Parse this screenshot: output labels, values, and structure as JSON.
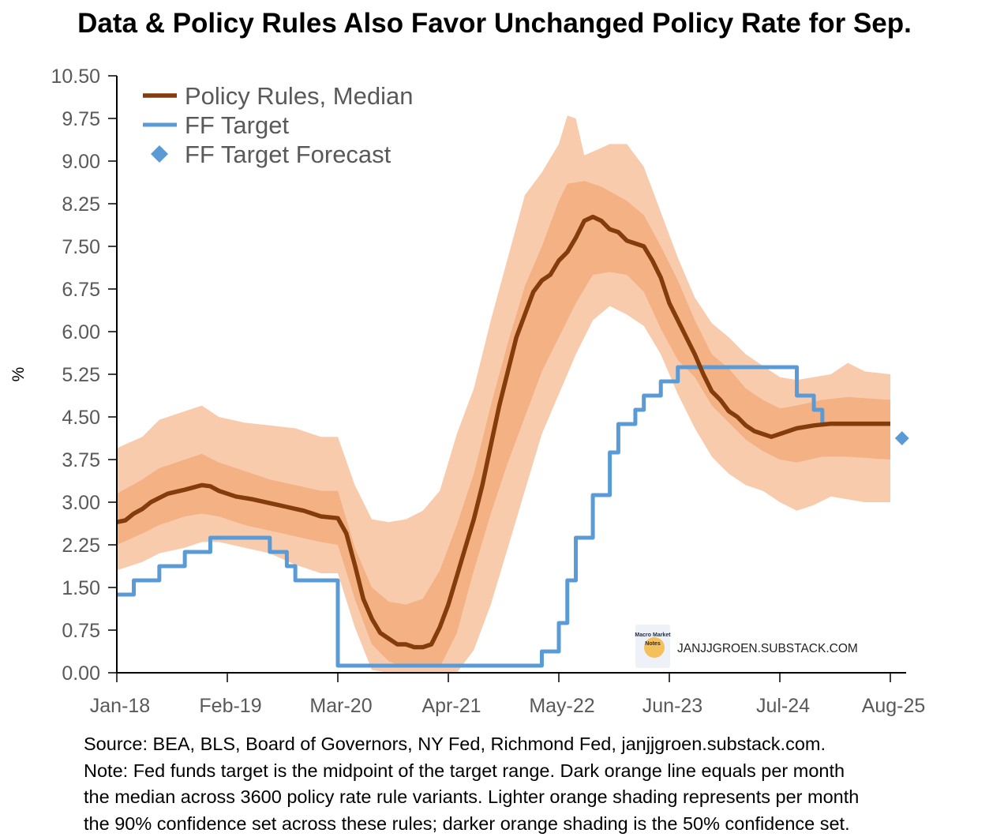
{
  "chart_data": {
    "type": "line",
    "title": "Data & Policy Rules Also Favor Unchanged Policy Rate for Sep.",
    "ylabel": "%",
    "xlabel": "",
    "ylim": [
      0,
      10.5
    ],
    "yticks": [
      "0.00",
      "0.75",
      "1.50",
      "2.25",
      "3.00",
      "3.75",
      "4.50",
      "5.25",
      "6.00",
      "6.75",
      "7.50",
      "8.25",
      "9.00",
      "9.75",
      "10.50"
    ],
    "xticks": [
      {
        "label": "Jan-18",
        "month": 0
      },
      {
        "label": "Feb-19",
        "month": 13
      },
      {
        "label": "Mar-20",
        "month": 26
      },
      {
        "label": "Apr-21",
        "month": 39
      },
      {
        "label": "May-22",
        "month": 52
      },
      {
        "label": "Jun-23",
        "month": 65
      },
      {
        "label": "Jul-24",
        "month": 78
      },
      {
        "label": "Aug-25",
        "month": 91
      }
    ],
    "x_note": "month index from Jan-18 = 0, monthly series through Aug-25 = 91",
    "legend": {
      "placement": "top-left",
      "entries": [
        "Policy Rules, Median",
        "FF Target",
        "FF Target Forecast"
      ]
    },
    "colors": {
      "median": "#843c0c",
      "ff": "#5b9bd5",
      "band90": "#f8cbad",
      "band50": "#f4b183"
    },
    "series": {
      "median": [
        [
          0,
          2.65
        ],
        [
          1,
          2.68
        ],
        [
          2,
          2.8
        ],
        [
          3,
          2.88
        ],
        [
          4,
          3.0
        ],
        [
          6,
          3.15
        ],
        [
          8,
          3.22
        ],
        [
          10,
          3.3
        ],
        [
          11,
          3.28
        ],
        [
          12,
          3.2
        ],
        [
          14,
          3.1
        ],
        [
          16,
          3.05
        ],
        [
          19,
          2.95
        ],
        [
          22,
          2.85
        ],
        [
          24,
          2.75
        ],
        [
          26,
          2.72
        ],
        [
          27,
          2.45
        ],
        [
          28,
          1.9
        ],
        [
          29,
          1.3
        ],
        [
          30,
          0.95
        ],
        [
          31,
          0.7
        ],
        [
          32,
          0.6
        ],
        [
          33,
          0.5
        ],
        [
          34,
          0.5
        ],
        [
          35,
          0.45
        ],
        [
          36,
          0.45
        ],
        [
          37,
          0.5
        ],
        [
          38,
          0.8
        ],
        [
          39,
          1.2
        ],
        [
          40,
          1.7
        ],
        [
          41,
          2.2
        ],
        [
          42,
          2.7
        ],
        [
          43,
          3.3
        ],
        [
          44,
          4.0
        ],
        [
          45,
          4.7
        ],
        [
          46,
          5.3
        ],
        [
          47,
          5.9
        ],
        [
          48,
          6.3
        ],
        [
          49,
          6.7
        ],
        [
          50,
          6.9
        ],
        [
          51,
          7.0
        ],
        [
          52,
          7.25
        ],
        [
          53,
          7.4
        ],
        [
          54,
          7.65
        ],
        [
          55,
          7.95
        ],
        [
          56,
          8.02
        ],
        [
          57,
          7.95
        ],
        [
          58,
          7.8
        ],
        [
          59,
          7.75
        ],
        [
          60,
          7.6
        ],
        [
          61,
          7.55
        ],
        [
          62,
          7.5
        ],
        [
          63,
          7.25
        ],
        [
          64,
          6.95
        ],
        [
          65,
          6.5
        ],
        [
          66,
          6.2
        ],
        [
          67,
          5.9
        ],
        [
          68,
          5.6
        ],
        [
          69,
          5.25
        ],
        [
          70,
          4.95
        ],
        [
          71,
          4.8
        ],
        [
          72,
          4.6
        ],
        [
          73,
          4.5
        ],
        [
          74,
          4.35
        ],
        [
          75,
          4.25
        ],
        [
          76,
          4.2
        ],
        [
          77,
          4.15
        ],
        [
          78,
          4.2
        ],
        [
          79,
          4.25
        ],
        [
          80,
          4.3
        ],
        [
          82,
          4.35
        ],
        [
          84,
          4.38
        ],
        [
          86,
          4.38
        ],
        [
          91,
          4.38
        ]
      ],
      "band90_high": [
        [
          0,
          3.95
        ],
        [
          3,
          4.15
        ],
        [
          5,
          4.45
        ],
        [
          8,
          4.6
        ],
        [
          10,
          4.7
        ],
        [
          12,
          4.5
        ],
        [
          15,
          4.4
        ],
        [
          18,
          4.35
        ],
        [
          21,
          4.3
        ],
        [
          24,
          4.15
        ],
        [
          26,
          4.15
        ],
        [
          28,
          3.3
        ],
        [
          30,
          2.7
        ],
        [
          32,
          2.65
        ],
        [
          34,
          2.7
        ],
        [
          36,
          2.85
        ],
        [
          38,
          3.2
        ],
        [
          40,
          4.2
        ],
        [
          42,
          5.0
        ],
        [
          44,
          6.2
        ],
        [
          46,
          7.3
        ],
        [
          48,
          8.4
        ],
        [
          50,
          8.8
        ],
        [
          52,
          9.3
        ],
        [
          53,
          9.8
        ],
        [
          54,
          9.75
        ],
        [
          55,
          9.1
        ],
        [
          58,
          9.3
        ],
        [
          60,
          9.3
        ],
        [
          62,
          8.9
        ],
        [
          64,
          8.1
        ],
        [
          66,
          7.3
        ],
        [
          68,
          6.6
        ],
        [
          70,
          6.15
        ],
        [
          72,
          5.9
        ],
        [
          74,
          5.6
        ],
        [
          76,
          5.4
        ],
        [
          78,
          5.2
        ],
        [
          80,
          5.15
        ],
        [
          82,
          5.2
        ],
        [
          84,
          5.25
        ],
        [
          86,
          5.45
        ],
        [
          88,
          5.3
        ],
        [
          91,
          5.25
        ]
      ],
      "band50_high": [
        [
          0,
          3.15
        ],
        [
          3,
          3.4
        ],
        [
          5,
          3.6
        ],
        [
          8,
          3.75
        ],
        [
          10,
          3.85
        ],
        [
          12,
          3.7
        ],
        [
          15,
          3.55
        ],
        [
          18,
          3.4
        ],
        [
          21,
          3.3
        ],
        [
          24,
          3.2
        ],
        [
          26,
          3.2
        ],
        [
          28,
          2.2
        ],
        [
          30,
          1.5
        ],
        [
          32,
          1.25
        ],
        [
          34,
          1.2
        ],
        [
          36,
          1.3
        ],
        [
          38,
          1.8
        ],
        [
          40,
          2.6
        ],
        [
          42,
          3.5
        ],
        [
          44,
          4.7
        ],
        [
          46,
          5.8
        ],
        [
          48,
          6.8
        ],
        [
          50,
          7.5
        ],
        [
          52,
          8.3
        ],
        [
          53,
          8.6
        ],
        [
          55,
          8.65
        ],
        [
          57,
          8.55
        ],
        [
          60,
          8.3
        ],
        [
          62,
          8.05
        ],
        [
          64,
          7.5
        ],
        [
          66,
          6.9
        ],
        [
          68,
          6.2
        ],
        [
          70,
          5.6
        ],
        [
          72,
          5.35
        ],
        [
          74,
          5.0
        ],
        [
          76,
          4.8
        ],
        [
          78,
          4.65
        ],
        [
          80,
          4.7
        ],
        [
          83,
          4.8
        ],
        [
          86,
          4.85
        ],
        [
          91,
          4.8
        ]
      ],
      "band50_low": [
        [
          0,
          2.25
        ],
        [
          3,
          2.45
        ],
        [
          5,
          2.6
        ],
        [
          8,
          2.75
        ],
        [
          10,
          2.8
        ],
        [
          12,
          2.75
        ],
        [
          15,
          2.6
        ],
        [
          18,
          2.5
        ],
        [
          21,
          2.4
        ],
        [
          24,
          2.3
        ],
        [
          26,
          2.25
        ],
        [
          28,
          1.3
        ],
        [
          30,
          0.5
        ],
        [
          32,
          0.2
        ],
        [
          34,
          0.1
        ],
        [
          38,
          0.1
        ],
        [
          40,
          0.7
        ],
        [
          42,
          1.8
        ],
        [
          44,
          2.8
        ],
        [
          46,
          3.7
        ],
        [
          48,
          4.5
        ],
        [
          50,
          5.3
        ],
        [
          52,
          5.9
        ],
        [
          54,
          6.5
        ],
        [
          56,
          7.0
        ],
        [
          58,
          7.05
        ],
        [
          60,
          7.0
        ],
        [
          62,
          6.7
        ],
        [
          64,
          6.05
        ],
        [
          66,
          5.5
        ],
        [
          68,
          5.2
        ],
        [
          70,
          4.7
        ],
        [
          72,
          4.4
        ],
        [
          74,
          4.1
        ],
        [
          76,
          3.9
        ],
        [
          78,
          3.75
        ],
        [
          80,
          3.7
        ],
        [
          83,
          3.8
        ],
        [
          86,
          3.8
        ],
        [
          91,
          3.75
        ]
      ],
      "band90_low": [
        [
          0,
          1.8
        ],
        [
          3,
          1.95
        ],
        [
          5,
          2.1
        ],
        [
          8,
          2.2
        ],
        [
          10,
          2.3
        ],
        [
          12,
          2.3
        ],
        [
          15,
          2.2
        ],
        [
          18,
          2.1
        ],
        [
          21,
          1.9
        ],
        [
          24,
          1.75
        ],
        [
          26,
          1.75
        ],
        [
          28,
          0.8
        ],
        [
          30,
          0.05
        ],
        [
          32,
          0
        ],
        [
          40,
          0
        ],
        [
          42,
          0.4
        ],
        [
          44,
          1.2
        ],
        [
          46,
          2.2
        ],
        [
          48,
          3.2
        ],
        [
          50,
          4.2
        ],
        [
          52,
          4.9
        ],
        [
          54,
          5.6
        ],
        [
          56,
          6.2
        ],
        [
          58,
          6.45
        ],
        [
          60,
          6.3
        ],
        [
          62,
          6.1
        ],
        [
          64,
          5.6
        ],
        [
          66,
          4.9
        ],
        [
          68,
          4.3
        ],
        [
          70,
          3.8
        ],
        [
          72,
          3.5
        ],
        [
          74,
          3.3
        ],
        [
          76,
          3.2
        ],
        [
          78,
          3.0
        ],
        [
          80,
          2.85
        ],
        [
          82,
          2.95
        ],
        [
          84,
          3.1
        ],
        [
          86,
          3.05
        ],
        [
          88,
          3.0
        ],
        [
          91,
          3.0
        ]
      ],
      "ff_target_steps": [
        [
          0,
          1.375
        ],
        [
          2,
          1.625
        ],
        [
          5,
          1.875
        ],
        [
          8,
          2.125
        ],
        [
          11,
          2.375
        ],
        [
          18,
          2.125
        ],
        [
          20,
          1.875
        ],
        [
          21,
          1.625
        ],
        [
          26,
          0.125
        ],
        [
          50,
          0.375
        ],
        [
          52,
          0.875
        ],
        [
          53,
          1.625
        ],
        [
          54,
          2.375
        ],
        [
          56,
          3.125
        ],
        [
          58,
          3.875
        ],
        [
          59,
          4.375
        ],
        [
          61,
          4.625
        ],
        [
          62,
          4.875
        ],
        [
          64,
          5.125
        ],
        [
          66,
          5.375
        ],
        [
          80,
          4.875
        ],
        [
          82,
          4.625
        ],
        [
          83,
          4.375
        ],
        [
          91,
          4.375
        ]
      ],
      "ff_target_forecast": [
        [
          92,
          4.125
        ]
      ]
    }
  },
  "watermark": {
    "logo_text": "Macro Market Notes",
    "site": "JANJJGROEN.SUBSTACK.COM"
  },
  "notes": [
    "Source: BEA, BLS, Board of Governors, NY Fed, Richmond Fed, janjjgroen.substack.com.",
    "Note: Fed funds target is the midpoint of the target range. Dark orange line equals per month",
    "the median across 3600 policy rate rule variants. Lighter orange shading represents per month",
    "the 90% confidence set across these rules; darker orange shading is the 50% confidence set."
  ]
}
